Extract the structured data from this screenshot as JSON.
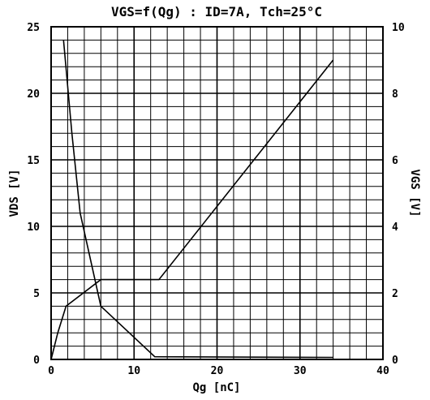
{
  "chart_data": {
    "type": "line",
    "title": "VGS=f(Qg) : ID=7A, Tch=25°C",
    "xlabel": "Qg [nC]",
    "ylabel_left": "VDS [V]",
    "ylabel_right": "VGS [V]",
    "xlim": [
      0,
      40
    ],
    "ylim_left": [
      0,
      25
    ],
    "ylim_right": [
      0,
      10
    ],
    "x_ticks": [
      "0",
      "10",
      "20",
      "30",
      "40"
    ],
    "y_left_ticks": [
      "0",
      "5",
      "10",
      "15",
      "20",
      "25"
    ],
    "y_right_ticks": [
      "0",
      "2",
      "4",
      "6",
      "8",
      "10"
    ],
    "grid": true,
    "series": [
      {
        "axis": "left",
        "x": [
          1.5,
          2.5,
          3.5,
          6.0,
          12.5,
          34.0
        ],
        "y": [
          24.0,
          17.0,
          11.0,
          4.0,
          0.2,
          0.15
        ]
      },
      {
        "axis": "right",
        "x": [
          0,
          0.8,
          1.8,
          6.0,
          13.0,
          34.0
        ],
        "y": [
          0,
          0.8,
          1.6,
          2.4,
          2.4,
          9.0
        ]
      }
    ]
  }
}
